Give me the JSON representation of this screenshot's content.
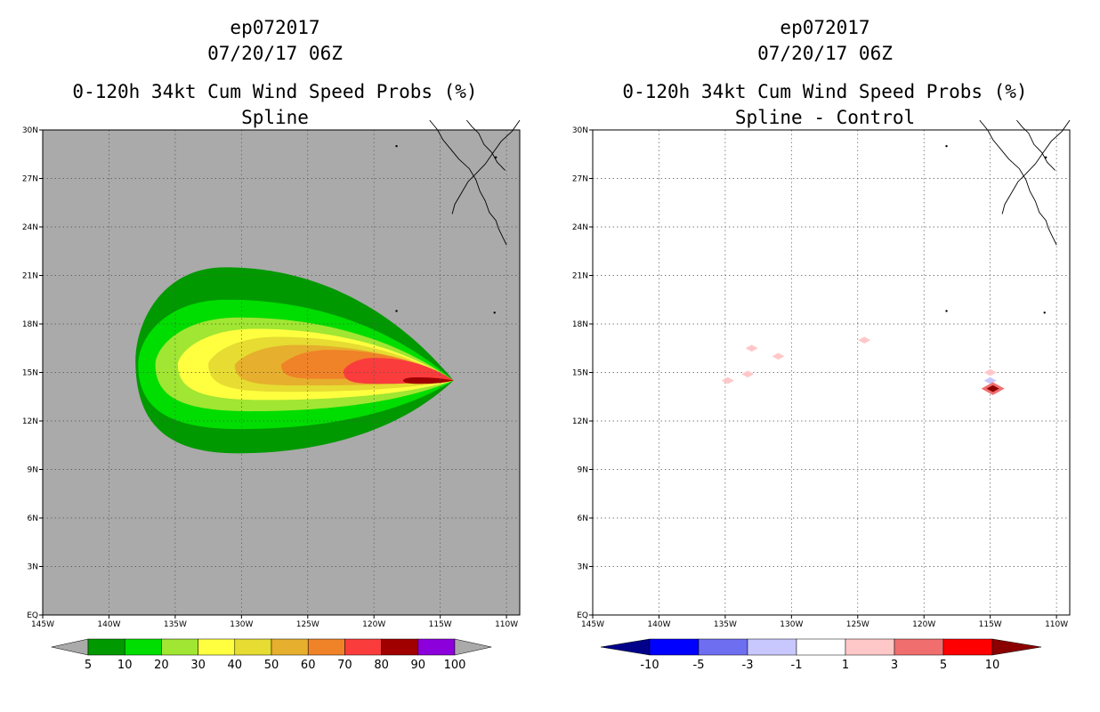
{
  "storm_id": "ep072017",
  "datetime": "07/20/17 06Z",
  "product": "0-120h 34kt Cum Wind Speed Probs (%)",
  "axes": {
    "lat_labels": [
      "EQ",
      "3N",
      "6N",
      "9N",
      "12N",
      "15N",
      "18N",
      "21N",
      "24N",
      "27N",
      "30N"
    ],
    "lon_labels": [
      "145W",
      "140W",
      "135W",
      "130W",
      "125W",
      "120W",
      "115W",
      "110W"
    ]
  },
  "panels": [
    {
      "subtitle": "Spline",
      "background": "#aaaaaa",
      "colorbar": {
        "labels": [
          "5",
          "10",
          "20",
          "30",
          "40",
          "50",
          "60",
          "70",
          "80",
          "90",
          "100"
        ],
        "colors": [
          "#009900",
          "#00dd00",
          "#a0e632",
          "#ffff40",
          "#e6dc32",
          "#e6af2d",
          "#f08228",
          "#fa3c3c",
          "#a00000",
          "#8c00dc"
        ],
        "under_color": "#aaaaaa",
        "over_color": "#aaaaaa"
      }
    },
    {
      "subtitle": "Spline - Control",
      "background": "#ffffff",
      "colorbar": {
        "labels": [
          "-10",
          "-5",
          "-3",
          "-1",
          "1",
          "3",
          "5",
          "10"
        ],
        "colors": [
          "#0000ff",
          "#6e6ef0",
          "#c8c8ff",
          "#ffffff",
          "#ffc8c8",
          "#f06e6e",
          "#ff0000"
        ],
        "under_color": "#00008b",
        "over_color": "#8b0000"
      }
    }
  ],
  "chart_data": {
    "type": "heatmap",
    "lon_range": [
      -145,
      -109
    ],
    "lat_range": [
      0,
      30
    ],
    "storm_position": {
      "lon": -114,
      "lat": 14.5
    },
    "left_probability_contours": [
      {
        "level": 5,
        "west_lon": -138,
        "east_lon": -114,
        "north_lat": 21.5,
        "south_lat": 10
      },
      {
        "level": 10,
        "west_lon": -137.8,
        "east_lon": -114,
        "north_lat": 19.5,
        "south_lat": 11.5
      },
      {
        "level": 20,
        "west_lon": -136.5,
        "east_lon": -114,
        "north_lat": 18.4,
        "south_lat": 12.6
      },
      {
        "level": 30,
        "west_lon": -134.8,
        "east_lon": -114,
        "north_lat": 17.7,
        "south_lat": 13.3
      },
      {
        "level": 40,
        "west_lon": -132.5,
        "east_lon": -114,
        "north_lat": 17.2,
        "south_lat": 13.8
      },
      {
        "level": 50,
        "west_lon": -130.5,
        "east_lon": -114,
        "north_lat": 16.7,
        "south_lat": 14.2
      },
      {
        "level": 60,
        "west_lon": -127,
        "east_lon": -114,
        "north_lat": 16.4,
        "south_lat": 14.6
      },
      {
        "level": 70,
        "west_lon": -122.3,
        "east_lon": -114,
        "north_lat": 15.9,
        "south_lat": 14.3
      },
      {
        "level": 80,
        "west_lon": -117.8,
        "east_lon": -114,
        "north_lat": 14.7,
        "south_lat": 14.3
      }
    ],
    "right_difference_spots": [
      {
        "lon": -114.8,
        "lat": 14.0,
        "value": 10
      },
      {
        "lon": -114.8,
        "lat": 14.0,
        "value": 3
      },
      {
        "lon": -115.0,
        "lat": 15.0,
        "value": 1
      },
      {
        "lon": -115.0,
        "lat": 14.5,
        "value": -1
      },
      {
        "lon": -124.5,
        "lat": 17.0,
        "value": 1
      },
      {
        "lon": -133.0,
        "lat": 16.5,
        "value": 1
      },
      {
        "lon": -133.3,
        "lat": 14.9,
        "value": 1
      },
      {
        "lon": -134.8,
        "lat": 14.5,
        "value": 1
      },
      {
        "lon": -131.0,
        "lat": 16.0,
        "value": 1
      }
    ]
  }
}
